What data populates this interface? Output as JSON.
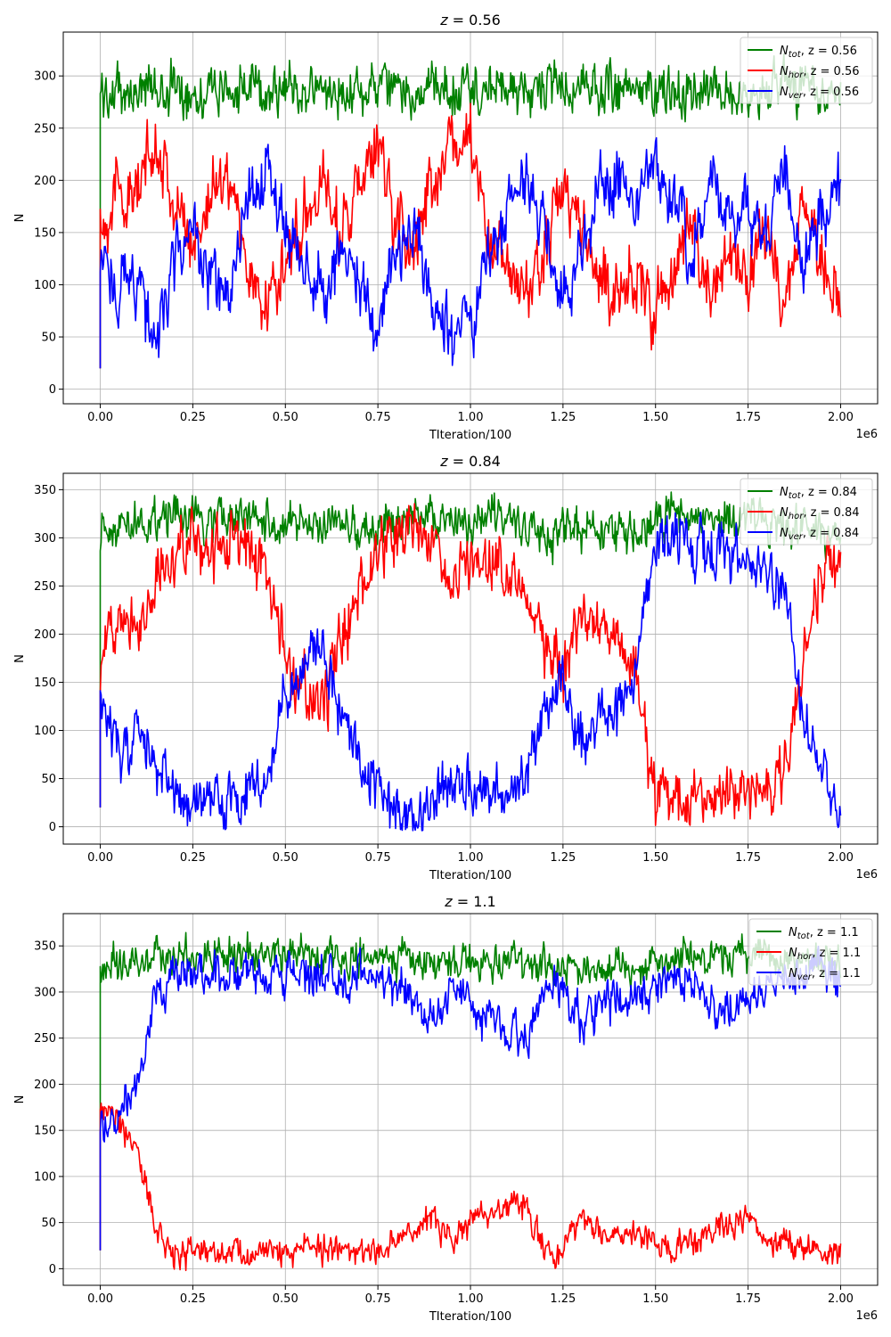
{
  "figure": {
    "background": "#ffffff",
    "grid_color": "#b0b0b0"
  },
  "chart_data": [
    {
      "type": "line",
      "title": "z = 0.56",
      "xlabel": "TIteration/100",
      "ylabel": "N",
      "x_offset_label": "1e6",
      "xlim": [
        -0.1,
        2.1
      ],
      "ylim": [
        -14,
        342
      ],
      "xticks": [
        0.0,
        0.25,
        0.5,
        0.75,
        1.0,
        1.25,
        1.5,
        1.75,
        2.0
      ],
      "xtick_labels": [
        "0.00",
        "0.25",
        "0.50",
        "0.75",
        "1.00",
        "1.25",
        "1.50",
        "1.75",
        "2.00"
      ],
      "yticks": [
        0,
        50,
        100,
        150,
        200,
        250,
        300
      ],
      "grid": true,
      "legend_position": "top-right",
      "series": [
        {
          "name": "N_tot, z = 0.56",
          "label_symbol": "N",
          "label_sub": "tot",
          "label_suffix": ", z = 0.56",
          "color": "#008000",
          "noise": 15,
          "x": [
            0,
            0.05,
            0.1,
            0.15,
            0.2,
            0.25,
            0.3,
            0.35,
            0.4,
            0.45,
            0.5,
            0.55,
            0.6,
            0.65,
            0.7,
            0.75,
            0.8,
            0.85,
            0.9,
            0.95,
            1.0,
            1.05,
            1.1,
            1.15,
            1.2,
            1.25,
            1.3,
            1.35,
            1.4,
            1.45,
            1.5,
            1.55,
            1.6,
            1.65,
            1.7,
            1.75,
            1.8,
            1.85,
            1.9,
            1.95,
            2.0
          ],
          "values": [
            283,
            284,
            286,
            288,
            287,
            286,
            285,
            286,
            287,
            288,
            287,
            286,
            285,
            286,
            287,
            288,
            286,
            285,
            286,
            288,
            287,
            286,
            285,
            286,
            287,
            288,
            287,
            286,
            285,
            286,
            287,
            288,
            287,
            286,
            285,
            286,
            287,
            288,
            287,
            286,
            287
          ]
        },
        {
          "name": "N_hor, z = 0.56",
          "label_symbol": "N",
          "label_sub": "hor",
          "label_suffix": ", z = 0.56",
          "color": "#ff0000",
          "noise": 20,
          "x": [
            0,
            0.05,
            0.1,
            0.15,
            0.2,
            0.25,
            0.3,
            0.35,
            0.4,
            0.45,
            0.5,
            0.55,
            0.6,
            0.65,
            0.7,
            0.75,
            0.8,
            0.85,
            0.9,
            0.95,
            1.0,
            1.05,
            1.1,
            1.15,
            1.2,
            1.25,
            1.3,
            1.35,
            1.4,
            1.45,
            1.5,
            1.55,
            1.6,
            1.65,
            1.7,
            1.75,
            1.8,
            1.85,
            1.9,
            1.95,
            2.0
          ],
          "values": [
            160,
            190,
            180,
            250,
            170,
            140,
            190,
            210,
            110,
            80,
            120,
            170,
            200,
            150,
            190,
            230,
            160,
            140,
            200,
            240,
            230,
            150,
            110,
            90,
            130,
            200,
            160,
            100,
            90,
            110,
            70,
            110,
            160,
            90,
            130,
            110,
            150,
            80,
            170,
            120,
            80
          ]
        },
        {
          "name": "N_ver, z = 0.56",
          "label_symbol": "N",
          "label_sub": "ver",
          "label_suffix": ", z = 0.56",
          "color": "#0000ff",
          "noise": 20,
          "x": [
            0,
            0.05,
            0.1,
            0.15,
            0.2,
            0.25,
            0.3,
            0.35,
            0.4,
            0.45,
            0.5,
            0.55,
            0.6,
            0.65,
            0.7,
            0.75,
            0.8,
            0.85,
            0.9,
            0.95,
            1.0,
            1.05,
            1.1,
            1.15,
            1.2,
            1.25,
            1.3,
            1.35,
            1.4,
            1.45,
            1.5,
            1.55,
            1.6,
            1.65,
            1.7,
            1.75,
            1.8,
            1.85,
            1.9,
            1.95,
            2.0
          ],
          "values": [
            120,
            100,
            110,
            40,
            120,
            150,
            100,
            80,
            180,
            210,
            160,
            120,
            90,
            140,
            100,
            60,
            130,
            150,
            90,
            50,
            60,
            140,
            170,
            200,
            160,
            90,
            130,
            190,
            200,
            180,
            220,
            180,
            130,
            200,
            160,
            180,
            140,
            210,
            120,
            170,
            200
          ]
        }
      ]
    },
    {
      "type": "line",
      "title": "z = 0.84",
      "xlabel": "TIteration/100",
      "ylabel": "N",
      "x_offset_label": "1e6",
      "xlim": [
        -0.1,
        2.1
      ],
      "ylim": [
        -18,
        367
      ],
      "xticks": [
        0.0,
        0.25,
        0.5,
        0.75,
        1.0,
        1.25,
        1.5,
        1.75,
        2.0
      ],
      "xtick_labels": [
        "0.00",
        "0.25",
        "0.50",
        "0.75",
        "1.00",
        "1.25",
        "1.50",
        "1.75",
        "2.00"
      ],
      "yticks": [
        0,
        50,
        100,
        150,
        200,
        250,
        300,
        350
      ],
      "grid": true,
      "legend_position": "top-right",
      "series": [
        {
          "name": "N_tot, z = 0.84",
          "label_symbol": "N",
          "label_sub": "tot",
          "label_suffix": ", z = 0.84",
          "color": "#008000",
          "noise": 14,
          "x": [
            0,
            0.05,
            0.1,
            0.15,
            0.2,
            0.25,
            0.3,
            0.35,
            0.4,
            0.45,
            0.5,
            0.55,
            0.6,
            0.65,
            0.7,
            0.75,
            0.8,
            0.85,
            0.9,
            0.95,
            1.0,
            1.05,
            1.1,
            1.15,
            1.2,
            1.25,
            1.3,
            1.35,
            1.4,
            1.45,
            1.5,
            1.55,
            1.6,
            1.65,
            1.7,
            1.75,
            1.8,
            1.85,
            1.9,
            1.95,
            2.0
          ],
          "values": [
            310,
            315,
            318,
            320,
            322,
            320,
            318,
            320,
            318,
            315,
            310,
            312,
            312,
            313,
            310,
            312,
            318,
            320,
            318,
            316,
            318,
            316,
            314,
            310,
            308,
            306,
            308,
            310,
            305,
            304,
            320,
            322,
            322,
            318,
            320,
            318,
            316,
            312,
            310,
            308,
            310
          ]
        },
        {
          "name": "N_hor, z = 0.84",
          "label_symbol": "N",
          "label_sub": "hor",
          "label_suffix": ", z = 0.84",
          "color": "#ff0000",
          "noise": 20,
          "x": [
            0,
            0.05,
            0.1,
            0.15,
            0.2,
            0.25,
            0.3,
            0.35,
            0.4,
            0.45,
            0.5,
            0.55,
            0.6,
            0.65,
            0.7,
            0.75,
            0.8,
            0.85,
            0.9,
            0.95,
            1.0,
            1.05,
            1.1,
            1.15,
            1.2,
            1.25,
            1.3,
            1.35,
            1.4,
            1.45,
            1.5,
            1.55,
            1.6,
            1.65,
            1.7,
            1.75,
            1.8,
            1.85,
            1.9,
            1.95,
            2.0
          ],
          "values": [
            160,
            240,
            210,
            250,
            290,
            300,
            280,
            300,
            290,
            260,
            170,
            140,
            120,
            200,
            240,
            280,
            300,
            310,
            290,
            260,
            270,
            280,
            270,
            260,
            190,
            150,
            230,
            200,
            190,
            150,
            30,
            20,
            40,
            30,
            40,
            30,
            40,
            60,
            180,
            260,
            280
          ]
        },
        {
          "name": "N_ver, z = 0.84",
          "label_symbol": "N",
          "label_sub": "ver",
          "label_suffix": ", z = 0.84",
          "color": "#0000ff",
          "noise": 18,
          "x": [
            0,
            0.05,
            0.1,
            0.15,
            0.2,
            0.25,
            0.3,
            0.35,
            0.4,
            0.45,
            0.5,
            0.55,
            0.6,
            0.65,
            0.7,
            0.75,
            0.8,
            0.85,
            0.9,
            0.95,
            1.0,
            1.05,
            1.1,
            1.15,
            1.2,
            1.25,
            1.3,
            1.35,
            1.4,
            1.45,
            1.5,
            1.55,
            1.6,
            1.65,
            1.7,
            1.75,
            1.8,
            1.85,
            1.9,
            1.95,
            2.0
          ],
          "values": [
            150,
            70,
            100,
            60,
            30,
            20,
            40,
            20,
            30,
            50,
            140,
            170,
            190,
            110,
            70,
            40,
            20,
            10,
            30,
            50,
            40,
            30,
            40,
            50,
            120,
            160,
            80,
            110,
            120,
            160,
            290,
            300,
            280,
            290,
            290,
            280,
            270,
            240,
            120,
            50,
            25
          ]
        }
      ]
    },
    {
      "type": "line",
      "title": "z = 1.1",
      "xlabel": "TIteration/100",
      "ylabel": "N",
      "x_offset_label": "1e6",
      "xlim": [
        -0.1,
        2.1
      ],
      "ylim": [
        -18,
        385
      ],
      "xticks": [
        0.0,
        0.25,
        0.5,
        0.75,
        1.0,
        1.25,
        1.5,
        1.75,
        2.0
      ],
      "xtick_labels": [
        "0.00",
        "0.25",
        "0.50",
        "0.75",
        "1.00",
        "1.25",
        "1.50",
        "1.75",
        "2.00"
      ],
      "yticks": [
        0,
        50,
        100,
        150,
        200,
        250,
        300,
        350
      ],
      "grid": true,
      "legend_position": "top-right",
      "series": [
        {
          "name": "N_tot, z = 1.1",
          "label_symbol": "N",
          "label_sub": "tot",
          "label_suffix": ", z = 1.1",
          "color": "#008000",
          "noise": 12,
          "x": [
            0,
            0.05,
            0.1,
            0.15,
            0.2,
            0.25,
            0.3,
            0.35,
            0.4,
            0.45,
            0.5,
            0.55,
            0.6,
            0.65,
            0.7,
            0.75,
            0.8,
            0.85,
            0.9,
            0.95,
            1.0,
            1.05,
            1.1,
            1.15,
            1.2,
            1.25,
            1.3,
            1.35,
            1.4,
            1.45,
            1.5,
            1.55,
            1.6,
            1.65,
            1.7,
            1.75,
            1.8,
            1.85,
            1.9,
            1.95,
            2.0
          ],
          "values": [
            325,
            328,
            330,
            335,
            340,
            342,
            340,
            342,
            340,
            342,
            340,
            342,
            340,
            338,
            340,
            338,
            336,
            334,
            332,
            335,
            334,
            332,
            330,
            328,
            330,
            328,
            326,
            325,
            328,
            330,
            335,
            338,
            338,
            336,
            335,
            336,
            335,
            334,
            335,
            336,
            335
          ]
        },
        {
          "name": "N_hor, z = 1.1",
          "label_symbol": "N",
          "label_sub": "hor",
          "label_suffix": ", z = 1.1",
          "color": "#ff0000",
          "noise": 10,
          "x": [
            0,
            0.05,
            0.1,
            0.15,
            0.2,
            0.25,
            0.3,
            0.35,
            0.4,
            0.45,
            0.5,
            0.55,
            0.6,
            0.65,
            0.7,
            0.75,
            0.8,
            0.85,
            0.9,
            0.95,
            1.0,
            1.05,
            1.1,
            1.15,
            1.2,
            1.25,
            1.3,
            1.35,
            1.4,
            1.45,
            1.5,
            1.55,
            1.6,
            1.65,
            1.7,
            1.75,
            1.8,
            1.85,
            1.9,
            1.95,
            2.0
          ],
          "values": [
            180,
            150,
            140,
            40,
            15,
            15,
            15,
            20,
            15,
            20,
            15,
            20,
            20,
            25,
            15,
            20,
            30,
            40,
            60,
            30,
            50,
            60,
            70,
            70,
            20,
            15,
            60,
            40,
            30,
            40,
            30,
            20,
            30,
            40,
            50,
            50,
            30,
            30,
            20,
            15,
            20
          ]
        },
        {
          "name": "N_ver, z = 1.1",
          "label_symbol": "N",
          "label_sub": "ver",
          "label_suffix": ", z = 1.1",
          "color": "#0000ff",
          "noise": 14,
          "x": [
            0,
            0.05,
            0.1,
            0.15,
            0.2,
            0.25,
            0.3,
            0.35,
            0.4,
            0.45,
            0.5,
            0.55,
            0.6,
            0.65,
            0.7,
            0.75,
            0.8,
            0.85,
            0.9,
            0.95,
            1.0,
            1.05,
            1.1,
            1.15,
            1.2,
            1.25,
            1.3,
            1.35,
            1.4,
            1.45,
            1.5,
            1.55,
            1.6,
            1.65,
            1.7,
            1.75,
            1.8,
            1.85,
            1.9,
            1.95,
            2.0
          ],
          "values": [
            150,
            170,
            200,
            300,
            320,
            320,
            320,
            320,
            325,
            320,
            325,
            320,
            320,
            315,
            325,
            320,
            305,
            290,
            270,
            300,
            285,
            275,
            260,
            250,
            305,
            310,
            270,
            285,
            295,
            290,
            305,
            315,
            305,
            295,
            285,
            285,
            305,
            305,
            315,
            320,
            315
          ]
        }
      ]
    }
  ]
}
